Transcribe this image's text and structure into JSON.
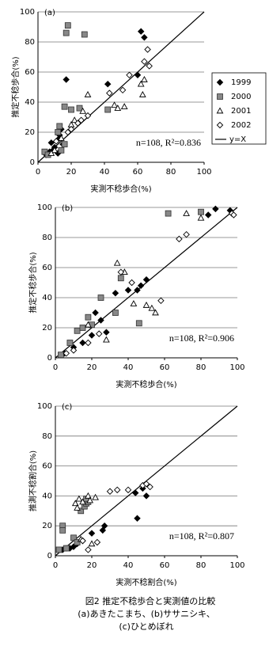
{
  "chart_data": [
    {
      "type": "scatter",
      "annotation": "(a)",
      "stats": "n=108, R²=0.836",
      "x_label": "実測不稔歩合(%)",
      "y_label": "推定不稔歩合(%)",
      "xlim": [
        0,
        100
      ],
      "ylim": [
        0,
        100
      ],
      "xticks": [
        0,
        20,
        40,
        60,
        80,
        100
      ],
      "yticks": [
        0,
        20,
        40,
        60,
        80,
        100
      ],
      "grid": true,
      "diagonal": true,
      "diagonal_label": "y=X",
      "legend": "right",
      "series": [
        {
          "name": "1999",
          "color": "#000000",
          "marker": "diamond-filled",
          "x": [
            5,
            7,
            8,
            10,
            12,
            13,
            14,
            17,
            42,
            62,
            64,
            60,
            12,
            9,
            15
          ],
          "y": [
            5,
            7,
            13,
            10,
            15,
            18,
            22,
            55,
            52,
            87,
            83,
            58,
            6,
            8,
            12
          ]
        },
        {
          "name": "2000",
          "color": "#888888",
          "marker": "square-filled",
          "x": [
            18,
            17,
            28,
            16,
            20,
            25,
            42,
            4,
            6,
            13,
            12,
            16,
            14
          ],
          "y": [
            91,
            86,
            85,
            37,
            35,
            36,
            35,
            7,
            5,
            24,
            20,
            12,
            8
          ]
        },
        {
          "name": "2001",
          "color": "#000000",
          "marker": "triangle-open",
          "x": [
            27,
            30,
            46,
            48,
            52,
            63,
            62,
            64,
            20,
            22,
            14,
            10,
            8
          ],
          "y": [
            34,
            45,
            38,
            36,
            37,
            45,
            52,
            55,
            25,
            28,
            16,
            8,
            6
          ]
        },
        {
          "name": "2002",
          "color": "#000000",
          "marker": "diamond-open",
          "x": [
            43,
            51,
            55,
            64,
            66,
            67,
            24,
            26,
            18,
            20,
            30,
            11
          ],
          "y": [
            46,
            48,
            58,
            67,
            75,
            64,
            26,
            28,
            20,
            22,
            31,
            14
          ]
        }
      ]
    },
    {
      "type": "scatter",
      "annotation": "(b)",
      "stats": "n=108, R²=0.906",
      "x_label": "実測不稔歩合(%)",
      "y_label": "推定不稔歩合(%)",
      "xlim": [
        0,
        100
      ],
      "ylim": [
        0,
        100
      ],
      "xticks": [
        0,
        20,
        40,
        60,
        80,
        100
      ],
      "yticks": [
        0,
        20,
        40,
        60,
        80,
        100
      ],
      "grid": true,
      "diagonal": true,
      "series": [
        {
          "color": "#000000",
          "marker": "diamond-filled",
          "x": [
            88,
            84,
            96,
            50,
            40,
            33,
            22,
            25,
            20,
            15,
            10,
            5,
            28,
            45,
            47
          ],
          "y": [
            99,
            95,
            98,
            52,
            45,
            43,
            30,
            25,
            15,
            10,
            7,
            3,
            17,
            45,
            48
          ]
        },
        {
          "color": "#888888",
          "marker": "square-filled",
          "x": [
            18,
            20,
            33,
            46,
            36,
            12,
            15,
            3,
            8,
            25,
            80,
            62
          ],
          "y": [
            27,
            22,
            30,
            23,
            53,
            18,
            20,
            2,
            10,
            40,
            97,
            96
          ]
        },
        {
          "color": "#000000",
          "marker": "triangle-open",
          "x": [
            34,
            38,
            53,
            55,
            50,
            72,
            80,
            43,
            18,
            28
          ],
          "y": [
            63,
            57,
            33,
            30,
            35,
            96,
            93,
            36,
            22,
            12
          ]
        },
        {
          "color": "#000000",
          "marker": "diamond-open",
          "x": [
            58,
            68,
            72,
            97,
            98,
            36,
            24,
            18,
            10,
            6,
            42
          ],
          "y": [
            38,
            79,
            82,
            96,
            95,
            57,
            16,
            10,
            5,
            3,
            50
          ]
        }
      ]
    },
    {
      "type": "scatter",
      "annotation": "(c)",
      "stats": "n=108, R²=0.807",
      "x_label": "実測不稔割合(%)",
      "y_label": "推測不稔割合(%)",
      "xlim": [
        0,
        100
      ],
      "ylim": [
        0,
        100
      ],
      "xticks": [
        0,
        20,
        40,
        60,
        80,
        100
      ],
      "yticks": [
        0,
        20,
        40,
        60,
        80,
        100
      ],
      "grid": true,
      "diagonal": true,
      "series": [
        {
          "color": "#000000",
          "marker": "diamond-filled",
          "x": [
            4,
            6,
            8,
            10,
            12,
            15,
            20,
            26,
            27,
            45,
            44,
            50,
            48
          ],
          "y": [
            4,
            5,
            5,
            6,
            8,
            10,
            15,
            17,
            20,
            25,
            42,
            40,
            45
          ]
        },
        {
          "color": "#888888",
          "marker": "square-filled",
          "x": [
            4,
            4,
            6,
            2,
            10,
            12,
            14,
            16,
            17,
            18,
            17
          ],
          "y": [
            20,
            17,
            5,
            4,
            12,
            9,
            30,
            33,
            35,
            36,
            38
          ]
        },
        {
          "color": "#000000",
          "marker": "triangle-open",
          "x": [
            11,
            12,
            13,
            15,
            18,
            19,
            22,
            20,
            14
          ],
          "y": [
            35,
            32,
            38,
            36,
            40,
            37,
            39,
            8,
            11
          ]
        },
        {
          "color": "#000000",
          "marker": "diamond-open",
          "x": [
            30,
            34,
            40,
            48,
            50,
            52,
            23,
            18,
            15
          ],
          "y": [
            43,
            44,
            44,
            47,
            48,
            46,
            9,
            4,
            10
          ]
        }
      ]
    }
  ],
  "caption": [
    "図2  推定不稔歩合と実測値の比較",
    "(a)あきたこまち、(b)ササニシキ、",
    "(c)ひとめぼれ"
  ]
}
